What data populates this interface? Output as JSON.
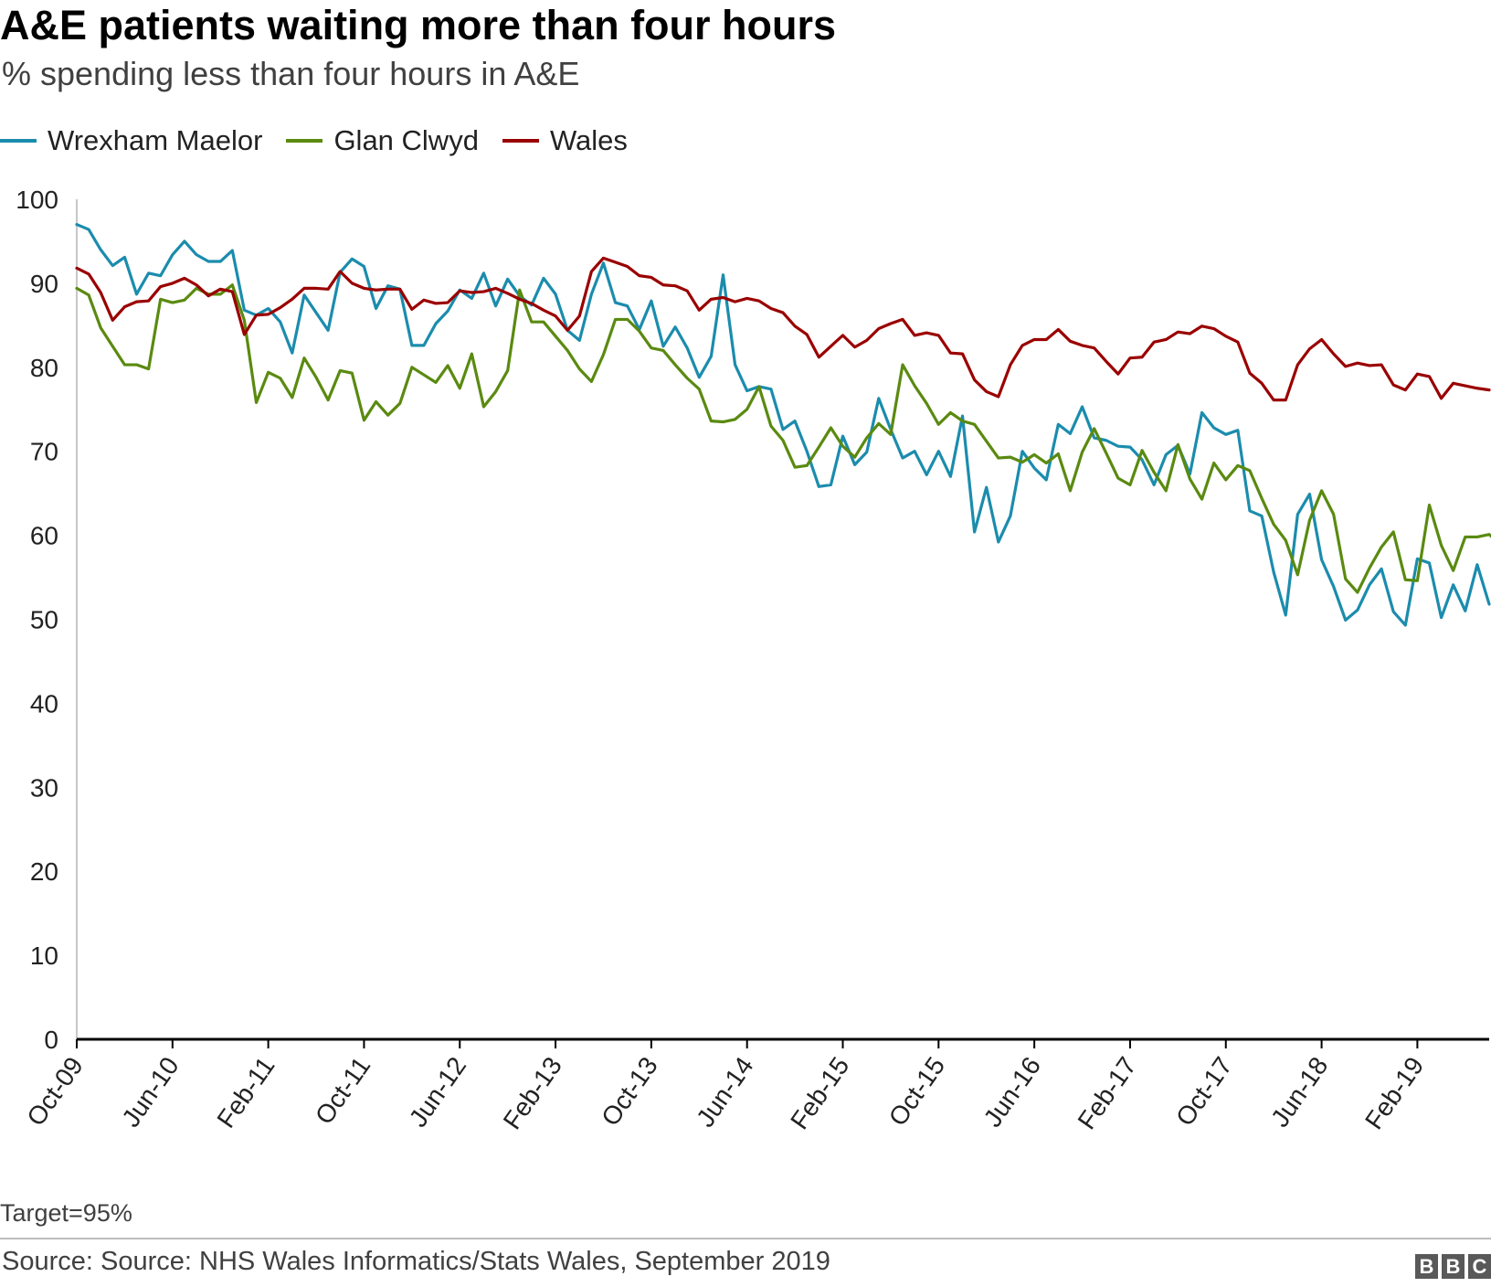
{
  "title": "A&E patients waiting more than four hours",
  "subtitle": "% spending less than four hours in A&E",
  "footnote": "Target=95%",
  "source": "Source: Source: NHS Wales Informatics/Stats Wales, September 2019",
  "logo_text": "BBC",
  "colors": {
    "wrexham": "#1b8cad",
    "glan": "#5a8a10",
    "wales": "#9a0000",
    "axis": "#000000"
  },
  "chart_data": {
    "type": "line",
    "x_start": "Oct-09",
    "frequency": "monthly",
    "tick_labels": [
      "Oct-09",
      "Jun-10",
      "Feb-11",
      "Oct-11",
      "Jun-12",
      "Feb-13",
      "Oct-13",
      "Jun-14",
      "Feb-15",
      "Oct-15",
      "Jun-16",
      "Feb-17",
      "Oct-17",
      "Jun-18",
      "Feb-19"
    ],
    "y_ticks": [
      0,
      10,
      20,
      30,
      40,
      50,
      60,
      70,
      80,
      90,
      100
    ],
    "ylim": [
      0,
      100
    ],
    "legend_position": "top-left",
    "grid": false,
    "series": [
      {
        "name": "Wrexham Maelor",
        "color_key": "wrexham",
        "values": [
          97,
          96.4,
          94,
          92.1,
          93.1,
          88.7,
          91.2,
          90.9,
          93.4,
          95,
          93.4,
          92.6,
          92.6,
          93.9,
          86.8,
          86.2,
          87,
          85.4,
          81.7,
          88.6,
          86.5,
          84.4,
          91.3,
          92.9,
          92,
          87,
          89.7,
          89.3,
          82.6,
          82.6,
          85.2,
          86.7,
          89.2,
          88.2,
          91.2,
          87.3,
          90.5,
          88.5,
          87.4,
          90.6,
          88.7,
          84.4,
          83.2,
          88.7,
          92.4,
          87.7,
          87.3,
          84.5,
          87.9,
          82.5,
          84.8,
          82.3,
          78.8,
          81.3,
          91,
          80.3,
          77.2,
          77.7,
          77.4,
          72.6,
          73.6,
          70,
          65.8,
          66,
          71.8,
          68.4,
          69.9,
          76.3,
          72.6,
          69.2,
          70,
          67.2,
          70,
          67,
          74.2,
          60.4,
          65.7,
          59.2,
          62.3,
          70,
          68,
          66.6,
          73.2,
          72.1,
          75.3,
          71.6,
          71.3,
          70.6,
          70.5,
          69,
          66,
          69.6,
          70.7,
          67.3,
          74.6,
          72.8,
          72,
          72.5,
          62.9,
          62.3,
          55.6,
          50.5,
          62.5,
          64.9,
          57.1,
          53.9,
          49.9,
          51.1,
          54.1,
          56,
          50.9,
          49.3,
          57.2,
          56.7,
          50.2,
          54.1,
          51,
          56.5,
          51.8
        ]
      },
      {
        "name": "Glan Clwyd",
        "color_key": "glan",
        "values": [
          89.4,
          88.6,
          84.7,
          82.5,
          80.3,
          80.3,
          79.8,
          88.1,
          87.7,
          88,
          89.4,
          88.7,
          88.7,
          89.8,
          85.6,
          75.8,
          79.4,
          78.7,
          76.4,
          81.1,
          78.8,
          76.1,
          79.6,
          79.3,
          73.7,
          75.9,
          74.3,
          75.7,
          80,
          79.1,
          78.2,
          80.2,
          77.5,
          81.6,
          75.3,
          77.1,
          79.6,
          89.2,
          85.4,
          85.4,
          83.7,
          82,
          79.8,
          78.3,
          81.5,
          85.7,
          85.7,
          84.3,
          82.3,
          82,
          80.3,
          78.7,
          77.4,
          73.6,
          73.5,
          73.8,
          75,
          77.7,
          73,
          71.3,
          68.1,
          68.3,
          70.5,
          72.8,
          70.6,
          69.3,
          71.6,
          73.3,
          72,
          80.3,
          77.8,
          75.7,
          73.2,
          74.6,
          73.6,
          73.2,
          71.2,
          69.2,
          69.3,
          68.7,
          69.6,
          68.6,
          69.7,
          65.3,
          69.9,
          72.7,
          69.8,
          66.8,
          66,
          70.1,
          67.5,
          65.3,
          70.8,
          66.7,
          64.3,
          68.6,
          66.6,
          68.3,
          67.7,
          64.4,
          61.3,
          59.4,
          55.3,
          61.8,
          65.3,
          62.5,
          54.8,
          53.2,
          56.1,
          58.6,
          60.4,
          54.7,
          54.6,
          63.6,
          58.8,
          55.8,
          59.8,
          59.8,
          60.1,
          58.8
        ]
      },
      {
        "name": "Wales",
        "color_key": "wales",
        "values": [
          91.8,
          91.1,
          88.9,
          85.6,
          87.2,
          87.8,
          87.9,
          89.6,
          90,
          90.6,
          89.8,
          88.5,
          89.3,
          89,
          83.9,
          86.2,
          86.3,
          87.1,
          88.1,
          89.4,
          89.4,
          89.3,
          91.4,
          90,
          89.4,
          89.2,
          89.3,
          89.3,
          86.9,
          88,
          87.6,
          87.7,
          89.1,
          88.9,
          89,
          89.4,
          88.8,
          88.1,
          87.6,
          86.8,
          86.1,
          84.4,
          86.1,
          91.4,
          93,
          92.5,
          92,
          90.9,
          90.7,
          89.8,
          89.7,
          89.1,
          86.8,
          88.1,
          88.3,
          87.8,
          88.2,
          87.9,
          87,
          86.5,
          84.9,
          83.9,
          81.2,
          82.5,
          83.8,
          82.4,
          83.2,
          84.6,
          85.2,
          85.7,
          83.8,
          84.1,
          83.8,
          81.7,
          81.6,
          78.5,
          77.1,
          76.5,
          80.3,
          82.6,
          83.3,
          83.3,
          84.5,
          83.1,
          82.6,
          82.3,
          80.7,
          79.2,
          81.1,
          81.2,
          83,
          83.3,
          84.2,
          84,
          84.9,
          84.6,
          83.7,
          83,
          79.3,
          78.1,
          76.1,
          76.1,
          80.3,
          82.2,
          83.3,
          81.6,
          80.1,
          80.5,
          80.2,
          80.3,
          77.9,
          77.3,
          79.2,
          78.9,
          76.3,
          78.1,
          77.8,
          77.5,
          77.3
        ]
      }
    ]
  }
}
